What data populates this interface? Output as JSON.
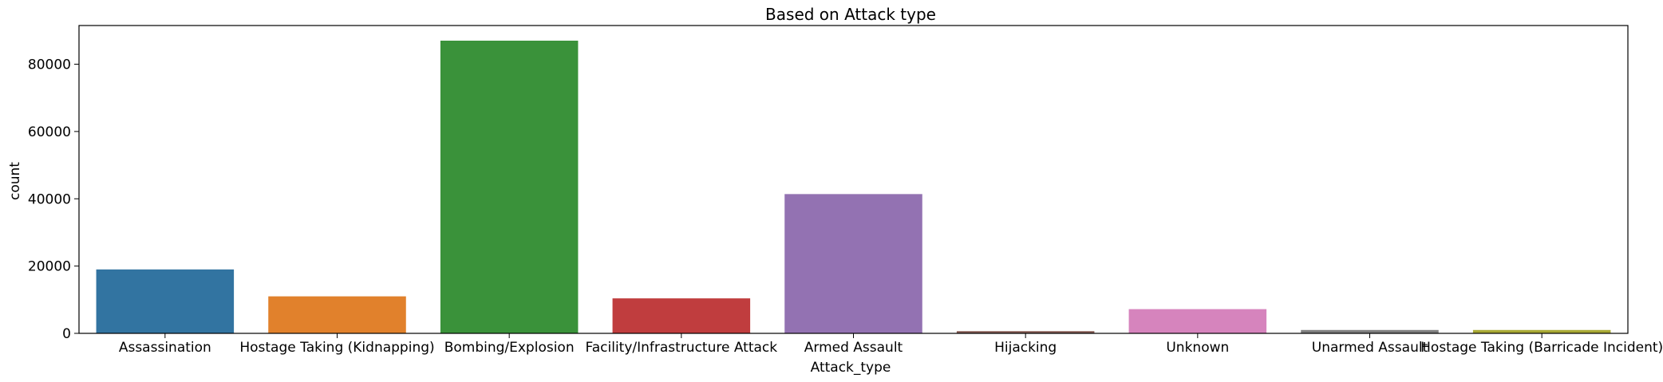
{
  "chart_data": {
    "type": "bar",
    "title": "Based on Attack type",
    "xlabel": "Attack_type",
    "ylabel": "count",
    "ylim": [
      0,
      91500
    ],
    "yticks": [
      0,
      20000,
      40000,
      60000,
      80000
    ],
    "categories": [
      "Assassination",
      "Hostage Taking (Kidnapping)",
      "Bombing/Explosion",
      "Facility/Infrastructure Attack",
      "Armed Assault",
      "Hijacking",
      "Unknown",
      "Unarmed Assault",
      "Hostage Taking (Barricade Incident)"
    ],
    "values": [
      19000,
      11000,
      87000,
      10400,
      41400,
      650,
      7200,
      1000,
      1000
    ],
    "colors": [
      "#3274a1",
      "#e1812c",
      "#3a923a",
      "#c03d3e",
      "#9372b2",
      "#845b53",
      "#d684bd",
      "#7f7f7f",
      "#a9aa35"
    ],
    "grid": false,
    "legend": "none"
  }
}
